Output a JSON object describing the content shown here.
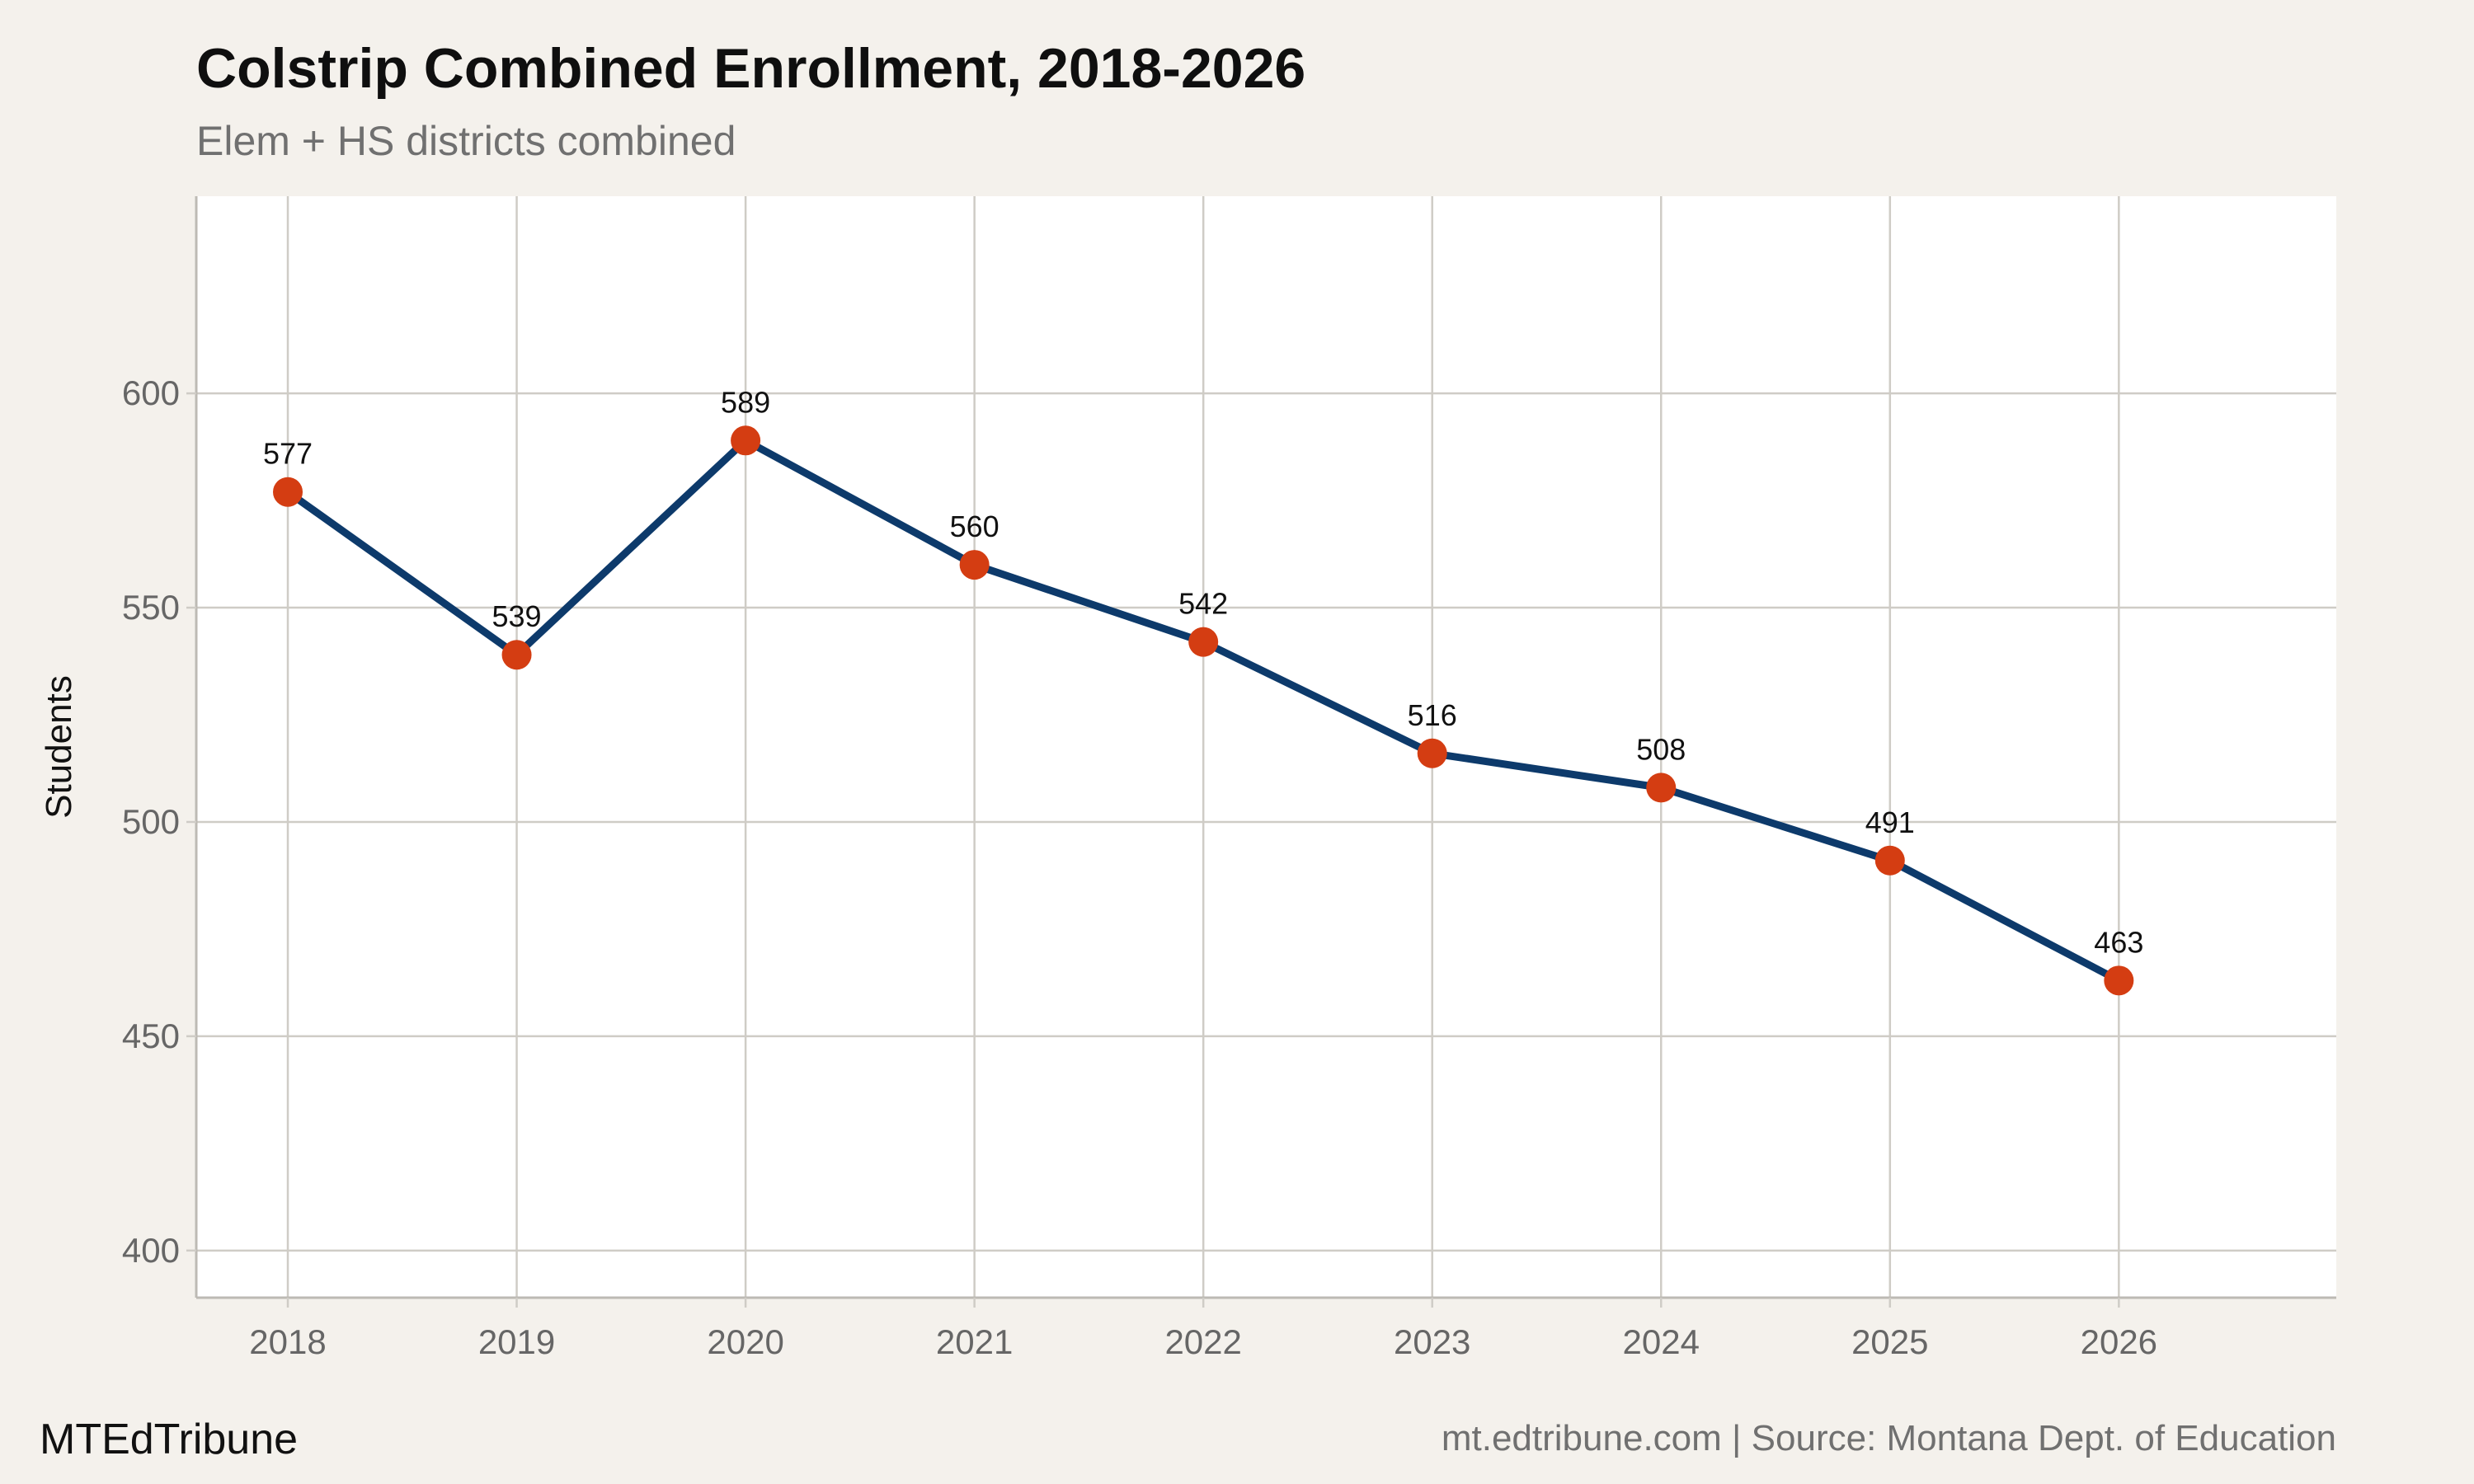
{
  "header": {
    "title": "Colstrip Combined Enrollment, 2018-2026",
    "subtitle": "Elem + HS districts combined"
  },
  "footer": {
    "brand": "MTEdTribune",
    "source": "mt.edtribune.com | Source: Montana Dept. of Education"
  },
  "colors": {
    "background": "#f4f1ec",
    "panel": "#ffffff",
    "grid": "#cfccc6",
    "line": "#0d3a6b",
    "marker": "#d43d12"
  },
  "chart_data": {
    "type": "line",
    "title": "Colstrip Combined Enrollment, 2018-2026",
    "subtitle": "Elem + HS districts combined",
    "xlabel": "",
    "ylabel": "Students",
    "x": [
      "2018",
      "2019",
      "2020",
      "2021",
      "2022",
      "2023",
      "2024",
      "2025",
      "2026"
    ],
    "series": [
      {
        "values": [
          577,
          539,
          589,
          560,
          542,
          516,
          508,
          491,
          463
        ],
        "labels": [
          "577",
          "539",
          "589",
          "560",
          "542",
          "516",
          "508",
          "491",
          "463"
        ]
      }
    ],
    "x_ticks": [
      "2018",
      "2019",
      "2020",
      "2021",
      "2022",
      "2023",
      "2024",
      "2025",
      "2026"
    ],
    "y_ticks": [
      "400",
      "450",
      "500",
      "550",
      "600"
    ],
    "y_tick_values": [
      400,
      450,
      500,
      550,
      600
    ],
    "ylim": [
      389,
      646
    ],
    "xlim": [
      2017.6,
      2026.95
    ],
    "grid": true,
    "legend": "none"
  }
}
